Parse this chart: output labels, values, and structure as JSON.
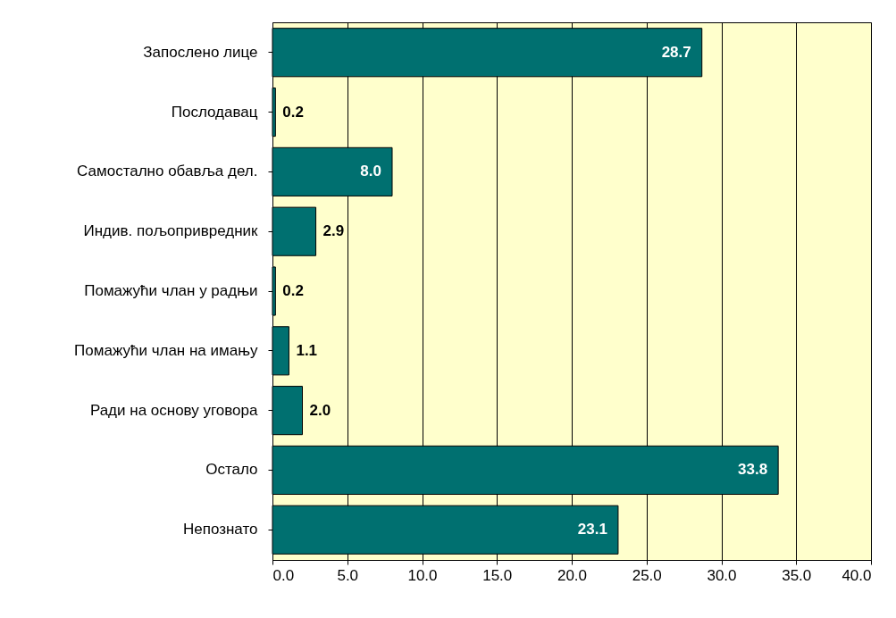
{
  "chart_data": {
    "type": "bar",
    "orientation": "horizontal",
    "categories": [
      "Запослено лице",
      "Послодавац",
      "Самостално обавља дел.",
      "Индив. пољопривредник",
      "Помажући члан у радњи",
      "Помажући члан на имању",
      "Ради на основу уговора",
      "Остало",
      "Непознато"
    ],
    "values": [
      28.7,
      0.2,
      8.0,
      2.9,
      0.2,
      1.1,
      2.0,
      33.8,
      23.1
    ],
    "value_labels": [
      "28.7",
      "0.2",
      "8.0",
      "2.9",
      "0.2",
      "1.1",
      "2.0",
      "33.8",
      "23.1"
    ],
    "color": "#007070",
    "xlim": [
      0,
      40
    ],
    "xticks": [
      {
        "value": 0,
        "label": "0.0"
      },
      {
        "value": 5,
        "label": "5.0"
      },
      {
        "value": 10,
        "label": "10.0"
      },
      {
        "value": 15,
        "label": "15.0"
      },
      {
        "value": 20,
        "label": "20.0"
      },
      {
        "value": 25,
        "label": "25.0"
      },
      {
        "value": 30,
        "label": "30.0"
      },
      {
        "value": 35,
        "label": "35.0"
      },
      {
        "value": 40,
        "label": "40.0"
      }
    ],
    "grid": "x"
  }
}
